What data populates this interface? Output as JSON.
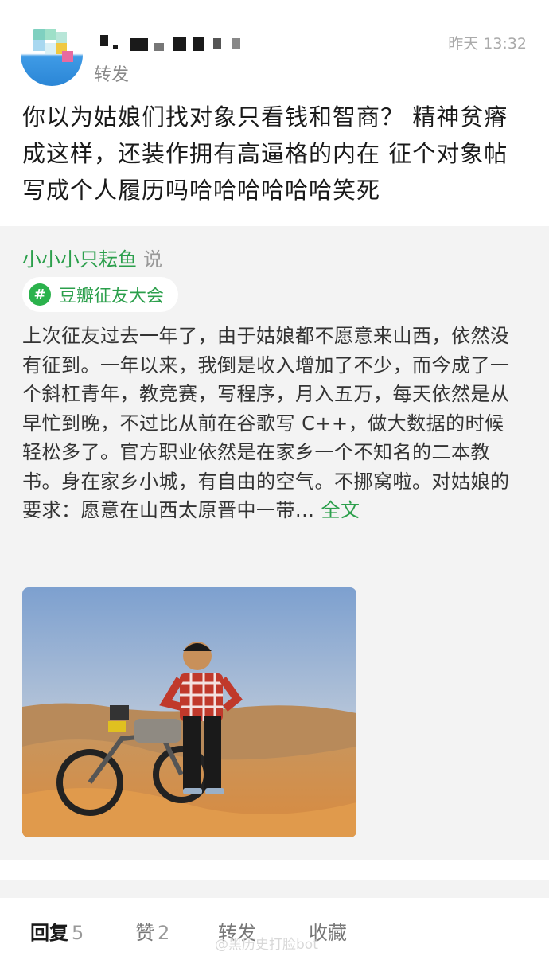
{
  "header": {
    "username": "",
    "repost_label": "转发",
    "timestamp": "昨天 13:32"
  },
  "post": {
    "text": "你以为姑娘们找对象只看钱和智商？ 精神贫瘠成这样，还装作拥有高逼格的内在 征个对象帖写成个人履历吗哈哈哈哈哈哈笑死"
  },
  "quote": {
    "author": "小小小只耘鱼",
    "said": "说",
    "tag_icon": "#",
    "tag": "豆瓣征友大会",
    "body": "上次征友过去一年了，由于姑娘都不愿意来山西，依然没有征到。一年以来，我倒是收入增加了不少，而今成了一个斜杠青年，教竞赛，写程序，月入五万，每天依然是从早忙到晚，不过比从前在谷歌写 C++，做大数据的时候轻松多了。官方职业依然是在家乡一个不知名的二本教书。身在家乡小城，有自由的空气。不挪窝啦。对姑娘的要求：愿意在山西太原晋中一带...",
    "fulltext_link": "全文"
  },
  "actions": {
    "reply_label": "回复",
    "reply_count": "5",
    "like_label": "赞",
    "like_count": "2",
    "repost_label": "转发",
    "collect_label": "收藏"
  },
  "watermark": "@黑历史打脸bot",
  "colors": {
    "accent_green": "#2b9f4b",
    "tag_green": "#2bb24c",
    "quote_bg": "#f3f3f3"
  }
}
